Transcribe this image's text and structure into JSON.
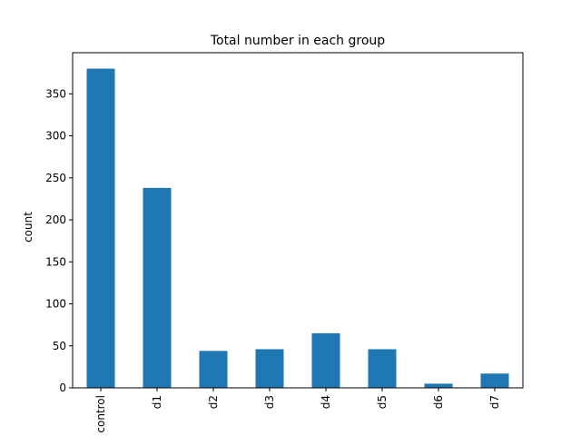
{
  "chart_data": {
    "type": "bar",
    "title": "Total number in each group",
    "xlabel": "",
    "ylabel": "count",
    "categories": [
      "control",
      "d1",
      "d2",
      "d3",
      "d4",
      "d5",
      "d6",
      "d7"
    ],
    "values": [
      380,
      238,
      44,
      46,
      65,
      46,
      5,
      17
    ],
    "ylim": [
      0,
      399
    ],
    "yticks": [
      0,
      50,
      100,
      150,
      200,
      250,
      300,
      350
    ],
    "bar_color": "#1f77b4",
    "grid": false,
    "legend": "none"
  }
}
